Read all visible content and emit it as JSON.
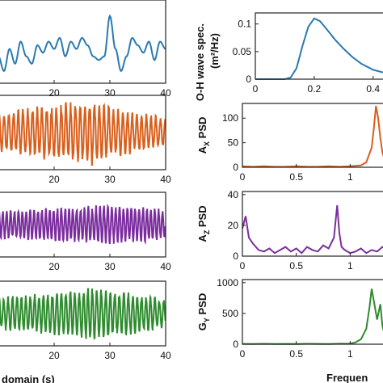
{
  "chart_data": [
    {
      "type": "line",
      "id": "time-1",
      "xlabel": "",
      "xticks": [
        20,
        30,
        40
      ],
      "xlim": [
        10,
        40
      ],
      "color": "#2a7ab0",
      "x": [
        10,
        11,
        12,
        13,
        14,
        15,
        16,
        17,
        18,
        19,
        20,
        21,
        22,
        23,
        24,
        25,
        26,
        27,
        28,
        29,
        30,
        31,
        32,
        33,
        34,
        35,
        36,
        37,
        38,
        39,
        40
      ],
      "y": [
        0.3,
        0.1,
        0.4,
        0.2,
        0.5,
        0.3,
        0.2,
        0.45,
        0.35,
        0.5,
        0.4,
        0.55,
        0.3,
        0.5,
        0.4,
        0.55,
        0.45,
        0.3,
        0.25,
        0.3,
        0.85,
        0.4,
        0.1,
        0.3,
        0.55,
        0.45,
        0.35,
        0.5,
        0.25,
        0.5,
        0.4
      ],
      "ylim": [
        0,
        1
      ]
    },
    {
      "type": "line",
      "id": "time-2",
      "xticks": [
        20,
        30,
        40
      ],
      "xlim": [
        10,
        40
      ],
      "color": "#d95f1c",
      "oscillation": {
        "period": 0.85,
        "amplitude_envelope": [
          [
            10,
            0.6
          ],
          [
            22,
            0.9
          ],
          [
            27,
            1.0
          ],
          [
            32,
            0.7
          ],
          [
            40,
            0.45
          ]
        ]
      }
    },
    {
      "type": "line",
      "id": "time-3",
      "xticks": [
        20,
        30,
        40
      ],
      "xlim": [
        10,
        40
      ],
      "color": "#7b2d9e",
      "oscillation": {
        "period": 0.7,
        "amplitude_envelope": [
          [
            10,
            0.5
          ],
          [
            20,
            0.6
          ],
          [
            30,
            0.7
          ],
          [
            40,
            0.6
          ]
        ]
      }
    },
    {
      "type": "line",
      "id": "time-4",
      "xlabel": "domain (s)",
      "xticks": [
        20,
        30,
        40
      ],
      "xlim": [
        10,
        40
      ],
      "color": "#2e8b2e",
      "oscillation": {
        "period": 0.8,
        "amplitude_envelope": [
          [
            10,
            0.6
          ],
          [
            22,
            0.8
          ],
          [
            27,
            1.0
          ],
          [
            33,
            0.8
          ],
          [
            40,
            0.5
          ]
        ]
      }
    },
    {
      "type": "line",
      "id": "psd-wave",
      "ylabel_line1": "O-H wave spec.",
      "ylabel_line2": "(m²/Hz)",
      "xticks": [
        0,
        0.2,
        0.4
      ],
      "xlim": [
        0,
        0.45
      ],
      "yticks": [
        0,
        0.05,
        0.1
      ],
      "yticklabels": [
        "0",
        "0.05",
        "0.1"
      ],
      "ylim": [
        0,
        0.12
      ],
      "color": "#2a7ab0",
      "x": [
        0,
        0.1,
        0.12,
        0.14,
        0.16,
        0.18,
        0.2,
        0.22,
        0.24,
        0.27,
        0.3,
        0.33,
        0.36,
        0.4,
        0.45
      ],
      "y": [
        0,
        0,
        0.003,
        0.02,
        0.06,
        0.095,
        0.11,
        0.105,
        0.092,
        0.072,
        0.055,
        0.04,
        0.028,
        0.017,
        0.01
      ]
    },
    {
      "type": "line",
      "id": "psd-ax",
      "ylabel_main": "A",
      "ylabel_sub": "X",
      "ylabel_tail": " PSD",
      "xticks": [
        0,
        0.5,
        1
      ],
      "xticklabels": [
        "0",
        "0.5",
        "1"
      ],
      "xlim": [
        0,
        1.35
      ],
      "yticks": [
        0,
        50,
        100
      ],
      "ylim": [
        0,
        130
      ],
      "color": "#d95f1c",
      "x": [
        0,
        0.1,
        0.2,
        0.3,
        0.4,
        0.5,
        0.6,
        0.7,
        0.8,
        0.9,
        1.0,
        1.1,
        1.15,
        1.2,
        1.22,
        1.24,
        1.26,
        1.28,
        1.3,
        1.32,
        1.35
      ],
      "y": [
        2,
        1,
        2,
        1,
        1,
        2,
        1,
        1,
        2,
        1,
        2,
        4,
        10,
        40,
        80,
        125,
        100,
        60,
        30,
        15,
        8
      ]
    },
    {
      "type": "line",
      "id": "psd-az",
      "ylabel_main": "A",
      "ylabel_sub": "Z",
      "ylabel_tail": " PSD",
      "xticks": [
        0,
        0.5,
        1
      ],
      "xticklabels": [
        "0",
        "0.5",
        "1"
      ],
      "xlim": [
        0,
        1.35
      ],
      "yticks": [
        0,
        20,
        40
      ],
      "ylim": [
        0,
        42
      ],
      "color": "#7b2d9e",
      "x": [
        0,
        0.03,
        0.06,
        0.1,
        0.15,
        0.2,
        0.25,
        0.3,
        0.35,
        0.4,
        0.45,
        0.5,
        0.55,
        0.6,
        0.65,
        0.7,
        0.75,
        0.8,
        0.85,
        0.88,
        0.9,
        0.92,
        0.95,
        1.0,
        1.05,
        1.1,
        1.15,
        1.2,
        1.25,
        1.3,
        1.35
      ],
      "y": [
        18,
        26,
        12,
        8,
        4,
        3,
        5,
        2,
        4,
        6,
        3,
        5,
        2,
        6,
        4,
        3,
        7,
        5,
        12,
        33,
        15,
        6,
        4,
        2,
        3,
        5,
        2,
        4,
        3,
        6,
        4
      ]
    },
    {
      "type": "line",
      "id": "psd-gy",
      "ylabel_main": "G",
      "ylabel_sub": "Y",
      "ylabel_tail": " PSD",
      "xlabel": "Frequen",
      "xticks": [
        0,
        0.5,
        1
      ],
      "xticklabels": [
        "0",
        "0.5",
        "1"
      ],
      "xlim": [
        0,
        1.35
      ],
      "yticks": [
        0,
        500,
        1000
      ],
      "ylim": [
        0,
        1050
      ],
      "color": "#2e8b2e",
      "x": [
        0,
        0.1,
        0.2,
        0.3,
        0.4,
        0.5,
        0.6,
        0.7,
        0.8,
        0.9,
        1.0,
        1.05,
        1.1,
        1.15,
        1.18,
        1.2,
        1.22,
        1.25,
        1.28,
        1.3,
        1.32,
        1.35
      ],
      "y": [
        5,
        3,
        6,
        4,
        5,
        3,
        6,
        5,
        4,
        8,
        10,
        30,
        80,
        250,
        600,
        900,
        700,
        400,
        650,
        300,
        150,
        80
      ]
    }
  ]
}
